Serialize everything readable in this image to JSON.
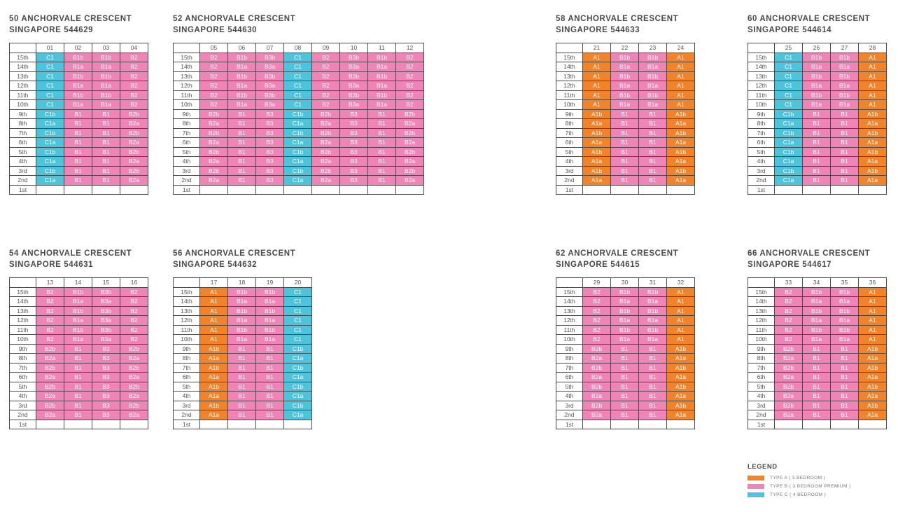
{
  "floors": [
    "15th",
    "14th",
    "13th",
    "12th",
    "11th",
    "10th",
    "9th",
    "8th",
    "7th",
    "6th",
    "5th",
    "4th",
    "3rd",
    "2nd",
    "1st"
  ],
  "type_colors": {
    "A": "#f1832a",
    "B": "#ef84b7",
    "C": "#4ec3dc"
  },
  "blocks": [
    {
      "id": "b50",
      "line1": "50 ANCHORVALE CRESCENT",
      "line2": "SINGAPORE 544629",
      "units": [
        "01",
        "02",
        "03",
        "04"
      ],
      "cells": [
        [
          "C1",
          "B1b",
          "B1b",
          "B2"
        ],
        [
          "C1",
          "B1a",
          "B1a",
          "B2"
        ],
        [
          "C1",
          "B1b",
          "B1b",
          "B2"
        ],
        [
          "C1",
          "B1a",
          "B1a",
          "B2"
        ],
        [
          "C1",
          "B1b",
          "B1b",
          "B2"
        ],
        [
          "C1",
          "B1a",
          "B1a",
          "B2"
        ],
        [
          "C1b",
          "B1",
          "B1",
          "B2b"
        ],
        [
          "C1a",
          "B1",
          "B1",
          "B2a"
        ],
        [
          "C1b",
          "B1",
          "B1",
          "B2b"
        ],
        [
          "C1a",
          "B1",
          "B1",
          "B2a"
        ],
        [
          "C1b",
          "B1",
          "B1",
          "B2b"
        ],
        [
          "C1a",
          "B1",
          "B1",
          "B2a"
        ],
        [
          "C1b",
          "B1",
          "B1",
          "B2b"
        ],
        [
          "C1a",
          "B1",
          "B1",
          "B2a"
        ],
        [
          "",
          "",
          "",
          ""
        ]
      ]
    },
    {
      "id": "b52",
      "line1": "52 ANCHORVALE CRESCENT",
      "line2": "SINGAPORE 544630",
      "units": [
        "05",
        "06",
        "07",
        "08",
        "09",
        "10",
        "11",
        "12"
      ],
      "cells": [
        [
          "B2",
          "B1b",
          "B3b",
          "C1",
          "B2",
          "B3b",
          "B1b",
          "B2"
        ],
        [
          "B2",
          "B1a",
          "B3a",
          "C1",
          "B2",
          "B3a",
          "B1a",
          "B2"
        ],
        [
          "B2",
          "B1b",
          "B3b",
          "C1",
          "B2",
          "B3b",
          "B1b",
          "B2"
        ],
        [
          "B2",
          "B1a",
          "B3a",
          "C1",
          "B2",
          "B3a",
          "B1a",
          "B2"
        ],
        [
          "B2",
          "B1b",
          "B3b",
          "C1",
          "B2",
          "B3b",
          "B1b",
          "B2"
        ],
        [
          "B2",
          "B1a",
          "B3a",
          "C1",
          "B2",
          "B3a",
          "B1a",
          "B2"
        ],
        [
          "B2b",
          "B1",
          "B3",
          "C1b",
          "B2b",
          "B3",
          "B1",
          "B2b"
        ],
        [
          "B2a",
          "B1",
          "B3",
          "C1a",
          "B2a",
          "B3",
          "B1",
          "B2a"
        ],
        [
          "B2b",
          "B1",
          "B3",
          "C1b",
          "B2b",
          "B3",
          "B1",
          "B2b"
        ],
        [
          "B2a",
          "B1",
          "B3",
          "C1a",
          "B2a",
          "B3",
          "B1",
          "B2a"
        ],
        [
          "B2b",
          "B1",
          "B3",
          "C1b",
          "B2b",
          "B3",
          "B1",
          "B2b"
        ],
        [
          "B2a",
          "B1",
          "B3",
          "C1a",
          "B2a",
          "B3",
          "B1",
          "B2a"
        ],
        [
          "B2b",
          "B1",
          "B3",
          "C1b",
          "B2b",
          "B3",
          "B1",
          "B2b"
        ],
        [
          "B2a",
          "B1",
          "B3",
          "C1a",
          "B2a",
          "B3",
          "B1",
          "B2a"
        ],
        [
          "",
          "",
          "",
          "",
          "",
          "",
          "",
          ""
        ]
      ]
    },
    {
      "id": "b58",
      "line1": "58 ANCHORVALE CRESCENT",
      "line2": "SINGAPORE 544633",
      "units": [
        "21",
        "22",
        "23",
        "24"
      ],
      "cells": [
        [
          "A1",
          "B1b",
          "B1b",
          "A1"
        ],
        [
          "A1",
          "B1a",
          "B1a",
          "A1"
        ],
        [
          "A1",
          "B1b",
          "B1b",
          "A1"
        ],
        [
          "A1",
          "B1a",
          "B1a",
          "A1"
        ],
        [
          "A1",
          "B1b",
          "B1b",
          "A1"
        ],
        [
          "A1",
          "B1a",
          "B1a",
          "A1"
        ],
        [
          "A1b",
          "B1",
          "B1",
          "A1b"
        ],
        [
          "A1a",
          "B1",
          "B1",
          "A1a"
        ],
        [
          "A1b",
          "B1",
          "B1",
          "A1b"
        ],
        [
          "A1a",
          "B1",
          "B1",
          "A1a"
        ],
        [
          "A1b",
          "B1",
          "B1",
          "A1b"
        ],
        [
          "A1a",
          "B1",
          "B1",
          "A1a"
        ],
        [
          "A1b",
          "B1",
          "B1",
          "A1b"
        ],
        [
          "A1a",
          "B1",
          "B1",
          "A1a"
        ],
        [
          "",
          "",
          "",
          ""
        ]
      ]
    },
    {
      "id": "b60",
      "line1": "60 ANCHORVALE CRESCENT",
      "line2": "SINGAPORE 544614",
      "units": [
        "25",
        "26",
        "27",
        "28"
      ],
      "cells": [
        [
          "C1",
          "B1b",
          "B1b",
          "A1"
        ],
        [
          "C1",
          "B1a",
          "B1a",
          "A1"
        ],
        [
          "C1",
          "B1b",
          "B1b",
          "A1"
        ],
        [
          "C1",
          "B1a",
          "B1a",
          "A1"
        ],
        [
          "C1",
          "B1b",
          "B1b",
          "A1"
        ],
        [
          "C1",
          "B1a",
          "B1a",
          "A1"
        ],
        [
          "C1b",
          "B1",
          "B1",
          "A1b"
        ],
        [
          "C1a",
          "B1",
          "B1",
          "A1a"
        ],
        [
          "C1b",
          "B1",
          "B1",
          "A1b"
        ],
        [
          "C1a",
          "B1",
          "B1",
          "A1a"
        ],
        [
          "C1b",
          "B1",
          "B1",
          "A1b"
        ],
        [
          "C1a",
          "B1",
          "B1",
          "A1a"
        ],
        [
          "C1b",
          "B1",
          "B1",
          "A1b"
        ],
        [
          "C1a",
          "B1",
          "B1",
          "A1a"
        ],
        [
          "",
          "",
          "",
          ""
        ]
      ]
    },
    {
      "id": "b54",
      "line1": "54 ANCHORVALE CRESCENT",
      "line2": "SINGAPORE 544631",
      "units": [
        "13",
        "14",
        "15",
        "16"
      ],
      "cells": [
        [
          "B2",
          "B1b",
          "B3b",
          "B2"
        ],
        [
          "B2",
          "B1a",
          "B3a",
          "B2"
        ],
        [
          "B2",
          "B1b",
          "B3b",
          "B2"
        ],
        [
          "B2",
          "B1a",
          "B3a",
          "B2"
        ],
        [
          "B2",
          "B1b",
          "B3b",
          "B2"
        ],
        [
          "B2",
          "B1a",
          "B3a",
          "B2"
        ],
        [
          "B2b",
          "B1",
          "B3",
          "B2b"
        ],
        [
          "B2a",
          "B1",
          "B3",
          "B2a"
        ],
        [
          "B2b",
          "B1",
          "B3",
          "B2b"
        ],
        [
          "B2a",
          "B1",
          "B3",
          "B2a"
        ],
        [
          "B2b",
          "B1",
          "B3",
          "B2b"
        ],
        [
          "B2a",
          "B1",
          "B3",
          "B2a"
        ],
        [
          "B2b",
          "B1",
          "B3",
          "B2b"
        ],
        [
          "B2a",
          "B1",
          "B3",
          "B2a"
        ],
        [
          "",
          "",
          "",
          ""
        ]
      ]
    },
    {
      "id": "b56",
      "line1": "56 ANCHORVALE CRESCENT",
      "line2": "SINGAPORE 544632",
      "units": [
        "17",
        "18",
        "19",
        "20"
      ],
      "cells": [
        [
          "A1",
          "B1b",
          "B1b",
          "C1"
        ],
        [
          "A1",
          "B1a",
          "B1a",
          "C1"
        ],
        [
          "A1",
          "B1b",
          "B1b",
          "C1"
        ],
        [
          "A1",
          "B1a",
          "B1a",
          "C1"
        ],
        [
          "A1",
          "B1b",
          "B1b",
          "C1"
        ],
        [
          "A1",
          "B1a",
          "B1a",
          "C1"
        ],
        [
          "A1b",
          "B1",
          "B1",
          "C1b"
        ],
        [
          "A1a",
          "B1",
          "B1",
          "C1a"
        ],
        [
          "A1b",
          "B1",
          "B1",
          "C1b"
        ],
        [
          "A1a",
          "B1",
          "B1",
          "C1a"
        ],
        [
          "A1b",
          "B1",
          "B1",
          "C1b"
        ],
        [
          "A1a",
          "B1",
          "B1",
          "C1a"
        ],
        [
          "A1b",
          "B1",
          "B1",
          "C1b"
        ],
        [
          "A1a",
          "B1",
          "B1",
          "C1a"
        ],
        [
          "",
          "",
          "",
          ""
        ]
      ]
    },
    {
      "id": "b62",
      "line1": "62 ANCHORVALE CRESCENT",
      "line2": "SINGAPORE 544615",
      "units": [
        "29",
        "30",
        "31",
        "32"
      ],
      "cells": [
        [
          "B2",
          "B1b",
          "B1b",
          "A1"
        ],
        [
          "B2",
          "B1a",
          "B1a",
          "A1"
        ],
        [
          "B2",
          "B1b",
          "B1b",
          "A1"
        ],
        [
          "B2",
          "B1a",
          "B1a",
          "A1"
        ],
        [
          "B2",
          "B1b",
          "B1b",
          "A1"
        ],
        [
          "B2",
          "B1a",
          "B1a",
          "A1"
        ],
        [
          "B2b",
          "B1",
          "B1",
          "A1b"
        ],
        [
          "B2a",
          "B1",
          "B1",
          "A1a"
        ],
        [
          "B2b",
          "B1",
          "B1",
          "A1b"
        ],
        [
          "B2a",
          "B1",
          "B1",
          "A1a"
        ],
        [
          "B2b",
          "B1",
          "B1",
          "A1b"
        ],
        [
          "B2a",
          "B1",
          "B1",
          "A1a"
        ],
        [
          "B2b",
          "B1",
          "B1",
          "A1b"
        ],
        [
          "B2a",
          "B1",
          "B1",
          "A1a"
        ],
        [
          "",
          "",
          "",
          ""
        ]
      ]
    },
    {
      "id": "b66",
      "line1": "66 ANCHORVALE CRESCENT",
      "line2": "SINGAPORE 544617",
      "units": [
        "33",
        "34",
        "35",
        "36"
      ],
      "cells": [
        [
          "B2",
          "B1b",
          "B1b",
          "A1"
        ],
        [
          "B2",
          "B1a",
          "B1a",
          "A1"
        ],
        [
          "B2",
          "B1b",
          "B1b",
          "A1"
        ],
        [
          "B2",
          "B1a",
          "B1a",
          "A1"
        ],
        [
          "B2",
          "B1b",
          "B1b",
          "A1"
        ],
        [
          "B2",
          "B1a",
          "B1a",
          "A1"
        ],
        [
          "B2b",
          "B1",
          "B1",
          "A1b"
        ],
        [
          "B2a",
          "B1",
          "B1",
          "A1a"
        ],
        [
          "B2b",
          "B1",
          "B1",
          "A1b"
        ],
        [
          "B2a",
          "B1",
          "B1",
          "A1a"
        ],
        [
          "B2b",
          "B1",
          "B1",
          "A1b"
        ],
        [
          "B2a",
          "B1",
          "B1",
          "A1a"
        ],
        [
          "B2b",
          "B1",
          "B1",
          "A1b"
        ],
        [
          "B2a",
          "B1",
          "B1",
          "A1a"
        ],
        [
          "",
          "",
          "",
          ""
        ]
      ]
    }
  ],
  "legend": {
    "title": "LEGEND",
    "items": [
      {
        "key": "A",
        "label": "TYPE A ( 3 BEDROOM )"
      },
      {
        "key": "B",
        "label": "TYPE B ( 3 BEDROOM PREMIUM )"
      },
      {
        "key": "C",
        "label": "TYPE C ( 4 BEDROOM )"
      }
    ]
  }
}
